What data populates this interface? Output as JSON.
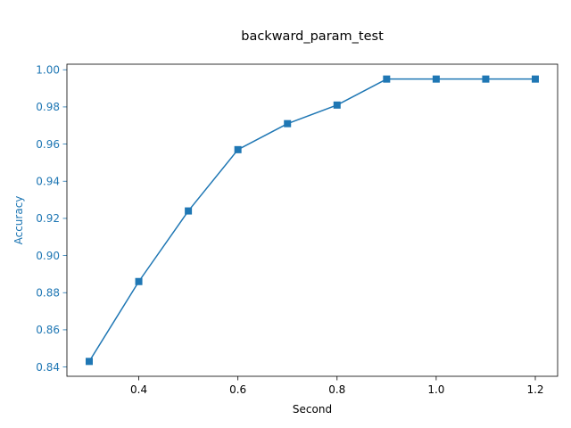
{
  "chart_data": {
    "type": "line",
    "title": "backward_param_test",
    "xlabel": "Second",
    "ylabel": "Accuracy",
    "x": [
      0.3,
      0.4,
      0.5,
      0.6,
      0.7,
      0.8,
      0.9,
      1.0,
      1.1,
      1.2
    ],
    "series": [
      {
        "values": [
          0.843,
          0.886,
          0.924,
          0.957,
          0.971,
          0.981,
          0.995,
          0.995,
          0.995,
          0.995
        ],
        "color": "#1f77b4",
        "marker": "square"
      }
    ],
    "xlim": [
      0.255,
      1.245
    ],
    "ylim": [
      0.835,
      1.003
    ],
    "x_ticks": [
      0.4,
      0.6,
      0.8,
      1.0,
      1.2
    ],
    "x_tick_labels": [
      "0.4",
      "0.6",
      "0.8",
      "1.0",
      "1.2"
    ],
    "y_ticks": [
      0.84,
      0.86,
      0.88,
      0.9,
      0.92,
      0.94,
      0.96,
      0.98,
      1.0
    ],
    "y_tick_labels": [
      "0.84",
      "0.86",
      "0.88",
      "0.90",
      "0.92",
      "0.94",
      "0.96",
      "0.98",
      "1.00"
    ],
    "ylabel_color": "#1f77b4",
    "y_tick_color": "#1f77b4",
    "grid": false,
    "legend": "none"
  }
}
